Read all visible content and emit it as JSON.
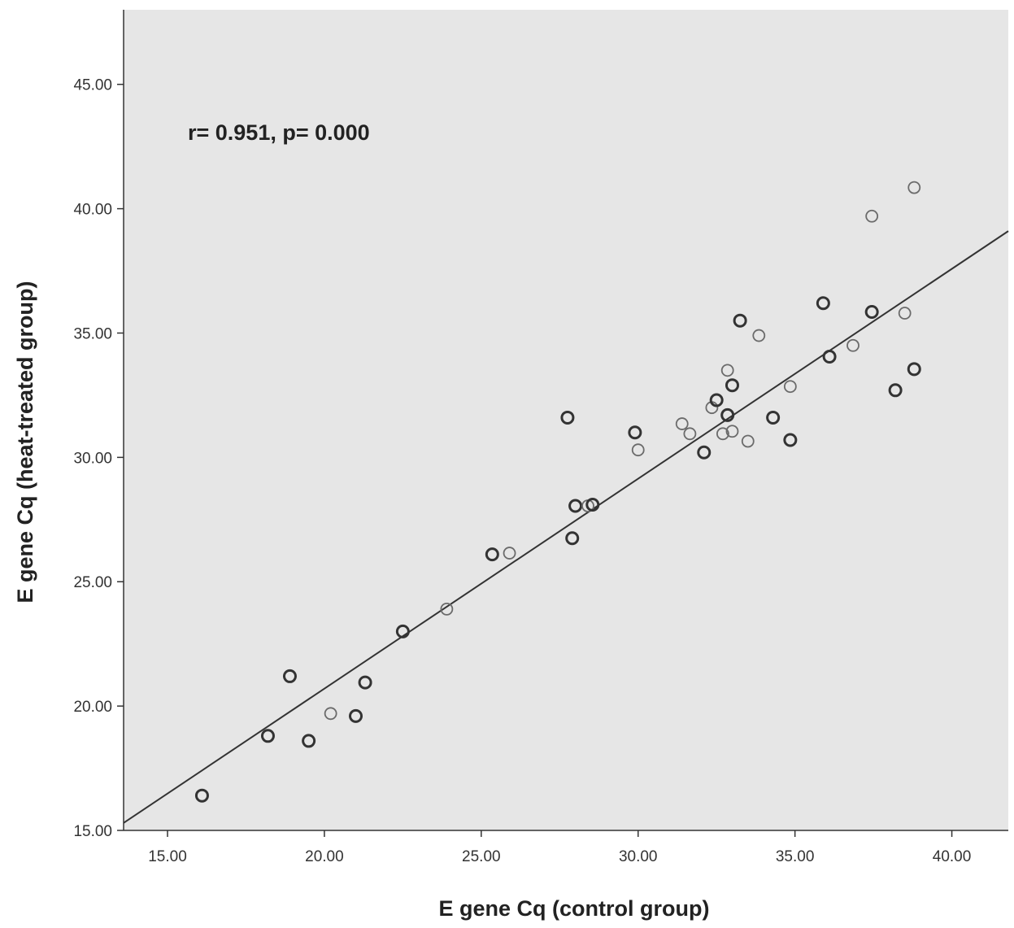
{
  "chart_data": {
    "type": "scatter",
    "title": "",
    "xlabel": "E gene Cq (control group)",
    "ylabel": "E gene Cq (heat-treated group)",
    "annotation": "r= 0.951, p= 0.000",
    "xlim": [
      13.6,
      41.8
    ],
    "ylim": [
      15.0,
      48.0
    ],
    "xticks": [
      15,
      20,
      25,
      30,
      35,
      40
    ],
    "yticks": [
      15,
      20,
      25,
      30,
      35,
      40,
      45
    ],
    "xtick_labels": [
      "15.00",
      "20.00",
      "25.00",
      "30.00",
      "35.00",
      "40.00"
    ],
    "ytick_labels": [
      "15.00",
      "20.00",
      "25.00",
      "30.00",
      "35.00",
      "40.00",
      "45.00"
    ],
    "grid": false,
    "fit_line": {
      "x": [
        13.6,
        41.8
      ],
      "y": [
        15.3,
        39.1
      ]
    },
    "points": [
      {
        "x": 16.1,
        "y": 16.4,
        "w": "heavy"
      },
      {
        "x": 18.2,
        "y": 18.8,
        "w": "heavy"
      },
      {
        "x": 18.9,
        "y": 21.2,
        "w": "heavy"
      },
      {
        "x": 19.5,
        "y": 18.6,
        "w": "heavy"
      },
      {
        "x": 20.2,
        "y": 19.7,
        "w": "light"
      },
      {
        "x": 21.0,
        "y": 19.6,
        "w": "heavy"
      },
      {
        "x": 21.3,
        "y": 20.95,
        "w": "heavy"
      },
      {
        "x": 22.5,
        "y": 23.0,
        "w": "heavy"
      },
      {
        "x": 23.9,
        "y": 23.9,
        "w": "light"
      },
      {
        "x": 25.35,
        "y": 26.1,
        "w": "heavy"
      },
      {
        "x": 25.9,
        "y": 26.15,
        "w": "light"
      },
      {
        "x": 27.75,
        "y": 31.6,
        "w": "heavy"
      },
      {
        "x": 27.9,
        "y": 26.75,
        "w": "heavy"
      },
      {
        "x": 28.0,
        "y": 28.05,
        "w": "heavy"
      },
      {
        "x": 28.4,
        "y": 28.05,
        "w": "light"
      },
      {
        "x": 28.55,
        "y": 28.1,
        "w": "heavy"
      },
      {
        "x": 29.9,
        "y": 31.0,
        "w": "heavy"
      },
      {
        "x": 30.0,
        "y": 30.3,
        "w": "light"
      },
      {
        "x": 31.4,
        "y": 31.35,
        "w": "light"
      },
      {
        "x": 31.65,
        "y": 30.95,
        "w": "light"
      },
      {
        "x": 32.1,
        "y": 30.2,
        "w": "heavy"
      },
      {
        "x": 32.35,
        "y": 32.0,
        "w": "light"
      },
      {
        "x": 32.5,
        "y": 32.3,
        "w": "heavy"
      },
      {
        "x": 32.7,
        "y": 30.95,
        "w": "light"
      },
      {
        "x": 32.85,
        "y": 33.5,
        "w": "light"
      },
      {
        "x": 32.85,
        "y": 31.7,
        "w": "heavy"
      },
      {
        "x": 33.0,
        "y": 32.9,
        "w": "heavy"
      },
      {
        "x": 33.0,
        "y": 31.05,
        "w": "light"
      },
      {
        "x": 33.25,
        "y": 35.5,
        "w": "heavy"
      },
      {
        "x": 33.5,
        "y": 30.65,
        "w": "light"
      },
      {
        "x": 33.85,
        "y": 34.9,
        "w": "light"
      },
      {
        "x": 34.3,
        "y": 31.6,
        "w": "heavy"
      },
      {
        "x": 34.85,
        "y": 30.7,
        "w": "heavy"
      },
      {
        "x": 34.85,
        "y": 32.85,
        "w": "light"
      },
      {
        "x": 35.9,
        "y": 36.2,
        "w": "heavy"
      },
      {
        "x": 36.1,
        "y": 34.05,
        "w": "heavy"
      },
      {
        "x": 36.85,
        "y": 34.5,
        "w": "light"
      },
      {
        "x": 37.45,
        "y": 39.7,
        "w": "light"
      },
      {
        "x": 37.45,
        "y": 35.85,
        "w": "heavy"
      },
      {
        "x": 38.2,
        "y": 32.7,
        "w": "heavy"
      },
      {
        "x": 38.5,
        "y": 35.8,
        "w": "light"
      },
      {
        "x": 38.8,
        "y": 40.85,
        "w": "light"
      },
      {
        "x": 38.8,
        "y": 33.55,
        "w": "heavy"
      }
    ]
  },
  "colors": {
    "plot_background": "#e6e6e6",
    "axis": "#333333",
    "fit_line": "#333333",
    "marker_heavy": "#333333",
    "marker_light": "#6b6b6b"
  }
}
